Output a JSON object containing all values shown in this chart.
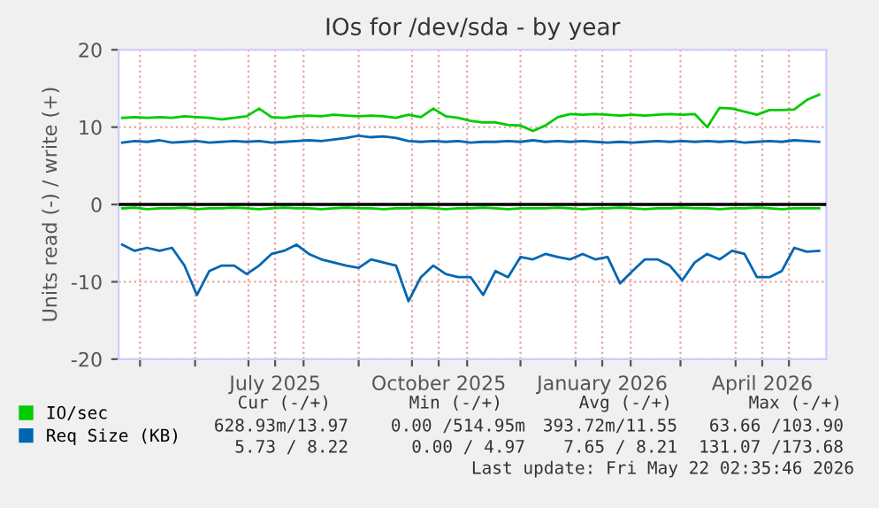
{
  "chart_data": {
    "type": "line",
    "title": "IOs for /dev/sda - by year",
    "ylabel": "Units read (-) / write (+)",
    "x": [
      "2025-04-21",
      "2025-04-28",
      "2025-05-05",
      "2025-05-12",
      "2025-05-19",
      "2025-05-26",
      "2025-06-02",
      "2025-06-09",
      "2025-06-16",
      "2025-06-23",
      "2025-06-30",
      "2025-07-07",
      "2025-07-14",
      "2025-07-21",
      "2025-07-28",
      "2025-08-04",
      "2025-08-11",
      "2025-08-18",
      "2025-08-25",
      "2025-09-01",
      "2025-09-08",
      "2025-09-15",
      "2025-09-22",
      "2025-09-29",
      "2025-10-06",
      "2025-10-13",
      "2025-10-20",
      "2025-10-27",
      "2025-11-03",
      "2025-11-10",
      "2025-11-17",
      "2025-11-24",
      "2025-12-01",
      "2025-12-08",
      "2025-12-15",
      "2025-12-22",
      "2025-12-29",
      "2026-01-05",
      "2026-01-12",
      "2026-01-19",
      "2026-01-26",
      "2026-02-02",
      "2026-02-09",
      "2026-02-16",
      "2026-02-23",
      "2026-03-02",
      "2026-03-09",
      "2026-03-16",
      "2026-03-23",
      "2026-03-30",
      "2026-04-06",
      "2026-04-13",
      "2026-04-20",
      "2026-04-27",
      "2026-05-04",
      "2026-05-11",
      "2026-05-18"
    ],
    "series": [
      {
        "name": "IO/sec",
        "color": "#00cc00",
        "values": [
          11.2,
          11.3,
          11.2,
          11.3,
          11.2,
          11.4,
          11.3,
          11.2,
          11.0,
          11.2,
          11.4,
          12.4,
          11.3,
          11.2,
          11.4,
          11.5,
          11.4,
          11.6,
          11.5,
          11.4,
          11.5,
          11.4,
          11.2,
          11.6,
          11.3,
          12.4,
          11.4,
          11.2,
          10.8,
          10.6,
          10.6,
          10.3,
          10.2,
          9.5,
          10.2,
          11.3,
          11.7,
          11.6,
          11.7,
          11.6,
          11.5,
          11.6,
          11.5,
          11.6,
          11.7,
          11.6,
          11.7,
          10.0,
          12.5,
          12.4,
          12.0,
          11.6,
          12.2,
          12.2,
          12.3,
          13.5,
          14.2
        ]
      },
      {
        "color": "#00cc00",
        "values": [
          -0.5,
          -0.4,
          -0.6,
          -0.5,
          -0.5,
          -0.4,
          -0.6,
          -0.5,
          -0.5,
          -0.4,
          -0.5,
          -0.6,
          -0.5,
          -0.4,
          -0.5,
          -0.5,
          -0.6,
          -0.5,
          -0.4,
          -0.5,
          -0.5,
          -0.6,
          -0.5,
          -0.5,
          -0.4,
          -0.5,
          -0.6,
          -0.5,
          -0.5,
          -0.4,
          -0.5,
          -0.6,
          -0.5,
          -0.5,
          -0.5,
          -0.4,
          -0.5,
          -0.6,
          -0.5,
          -0.5,
          -0.4,
          -0.5,
          -0.6,
          -0.5,
          -0.5,
          -0.4,
          -0.5,
          -0.5,
          -0.6,
          -0.5,
          -0.5,
          -0.4,
          -0.5,
          -0.6,
          -0.5,
          -0.5,
          -0.5
        ]
      },
      {
        "name": "Req Size (KB)",
        "color": "#0066b3",
        "values": [
          8.0,
          8.2,
          8.1,
          8.3,
          8.0,
          8.1,
          8.2,
          8.0,
          8.1,
          8.2,
          8.1,
          8.2,
          8.0,
          8.1,
          8.2,
          8.3,
          8.2,
          8.4,
          8.6,
          8.9,
          8.7,
          8.8,
          8.6,
          8.2,
          8.1,
          8.2,
          8.1,
          8.2,
          8.0,
          8.1,
          8.1,
          8.2,
          8.1,
          8.3,
          8.1,
          8.2,
          8.1,
          8.2,
          8.1,
          8.0,
          8.1,
          8.0,
          8.1,
          8.2,
          8.1,
          8.2,
          8.1,
          8.2,
          8.1,
          8.2,
          8.0,
          8.1,
          8.2,
          8.1,
          8.3,
          8.2,
          8.1
        ]
      },
      {
        "color": "#0066b3",
        "values": [
          -5.2,
          -6.0,
          -5.6,
          -6.0,
          -5.6,
          -7.9,
          -11.7,
          -8.6,
          -7.9,
          -7.9,
          -9.0,
          -7.9,
          -6.4,
          -6.0,
          -5.2,
          -6.4,
          -7.1,
          -7.5,
          -7.9,
          -8.2,
          -7.1,
          -7.5,
          -7.9,
          -12.5,
          -9.4,
          -7.9,
          -9.0,
          -9.4,
          -9.4,
          -11.7,
          -8.6,
          -9.4,
          -6.8,
          -7.1,
          -6.4,
          -6.8,
          -7.1,
          -6.4,
          -7.1,
          -6.8,
          -10.2,
          -8.6,
          -7.1,
          -7.1,
          -7.9,
          -9.8,
          -7.5,
          -6.4,
          -7.1,
          -6.0,
          -6.4,
          -9.4,
          -9.4,
          -8.6,
          -5.6,
          -6.1,
          -6.0
        ]
      }
    ],
    "xlim": [
      "2025-04-19",
      "2026-05-22"
    ],
    "xticks": [
      {
        "value": "2025-05-01",
        "label": null
      },
      {
        "value": "2025-06-01",
        "label": null
      },
      {
        "value": "2025-07-01",
        "label": null
      },
      {
        "value": "2025-07-16",
        "label": "July 2025"
      },
      {
        "value": "2025-08-01",
        "label": null
      },
      {
        "value": "2025-09-01",
        "label": null
      },
      {
        "value": "2025-10-01",
        "label": null
      },
      {
        "value": "2025-10-16",
        "label": "October 2025"
      },
      {
        "value": "2025-11-01",
        "label": null
      },
      {
        "value": "2025-12-01",
        "label": null
      },
      {
        "value": "2026-01-01",
        "label": null
      },
      {
        "value": "2026-01-16",
        "label": "January 2026"
      },
      {
        "value": "2026-02-01",
        "label": null
      },
      {
        "value": "2026-03-01",
        "label": null
      },
      {
        "value": "2026-04-01",
        "label": null
      },
      {
        "value": "2026-04-16",
        "label": "April 2026"
      },
      {
        "value": "2026-05-01",
        "label": null
      }
    ],
    "ylim": [
      -20,
      20
    ],
    "yticks": [
      -20,
      -10,
      0,
      10,
      20
    ],
    "ref_lines": [
      {
        "axis": "y",
        "value": 0,
        "color": "#000000"
      }
    ],
    "grid": true,
    "legend": "bottom",
    "marker": "none",
    "line_style": "solid",
    "annotations": [
      "Cur (-/+)",
      "Min (-/+)",
      "Avg (-/+)",
      "Max (-/+)",
      "628.93m/13.97",
      "0.00 /514.95m",
      "393.72m/11.55",
      "63.66 /103.90",
      "5.73 / 8.22",
      "0.00 / 4.97",
      "7.65 / 8.21",
      "131.07 /173.68",
      "Last update: Fri May 22 02:35:46 2026"
    ]
  }
}
